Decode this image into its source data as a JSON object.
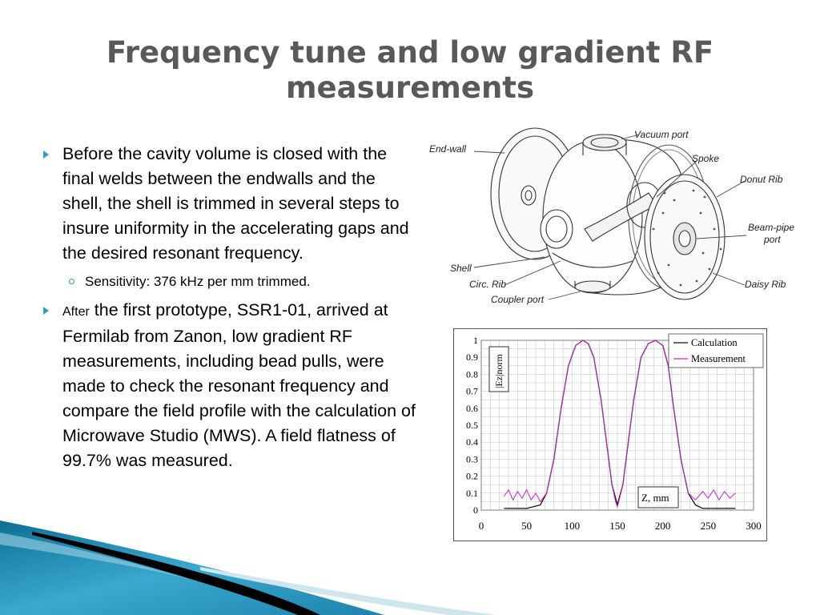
{
  "slide": {
    "title_line1": "Frequency tune and low gradient RF",
    "title_line2": "measurements",
    "bullet1_text": "Before the cavity volume is closed with the final welds between the endwalls and the shell, the shell is trimmed in several steps to insure uniformity in the accelerating gaps and the desired resonant frequency.",
    "sub_bullet": "Sensitivity: 376 kHz per mm trimmed.",
    "bullet2_lead": "After",
    "bullet2_text": " the first prototype, SSR1-01, arrived at Fermilab from Zanon, low gradient RF measurements, including bead pulls, were made to check the resonant frequency and compare the field profile with the calculation of Microwave Studio (MWS).  A field flatness of 99.7% was measured."
  },
  "diagram": {
    "labels": {
      "vacuum_port": "Vacuum port",
      "end_wall": "End-wall",
      "spoke": "Spoke",
      "donut_rib": "Donut Rib",
      "beam_pipe_port": "Beam-pipe",
      "beam_pipe_port_2": "port",
      "shell": "Shell",
      "circ_rib": "Circ. Rib",
      "daisy_rib": "Daisy Rib",
      "coupler_port": "Coupler port"
    }
  },
  "colors": {
    "title": "#595959",
    "bullet": "#2e9fc4",
    "calculation": "#111111",
    "measurement": "#cc22cc"
  },
  "chart_data": {
    "type": "line",
    "ylabel": "|Ez|norm",
    "xlabel": "Z, mm",
    "xlim": [
      0,
      300
    ],
    "ylim": [
      0,
      1
    ],
    "x_ticks": [
      0,
      50,
      100,
      150,
      200,
      250,
      300
    ],
    "y_ticks": [
      0,
      0.1,
      0.2,
      0.3,
      0.4,
      0.5,
      0.6,
      0.7,
      0.8,
      0.9,
      1
    ],
    "grid": true,
    "legend_position": "top-right",
    "series": [
      {
        "name": "Calculation",
        "color": "#111111",
        "x": [
          25,
          50,
          65,
          72,
          80,
          88,
          96,
          104,
          112,
          118,
          124,
          132,
          138,
          144,
          150,
          156,
          162,
          168,
          176,
          184,
          192,
          200,
          206,
          212,
          220,
          228,
          236,
          244,
          252,
          265,
          280
        ],
        "y": [
          0.01,
          0.01,
          0.03,
          0.1,
          0.3,
          0.6,
          0.85,
          0.97,
          1.0,
          0.98,
          0.9,
          0.65,
          0.4,
          0.15,
          0.03,
          0.15,
          0.4,
          0.65,
          0.9,
          0.98,
          1.0,
          0.97,
          0.85,
          0.6,
          0.3,
          0.1,
          0.03,
          0.01,
          0.01,
          0.01,
          0.01
        ]
      },
      {
        "name": "Measurement",
        "color": "#cc22cc",
        "x": [
          25,
          30,
          35,
          40,
          45,
          50,
          55,
          60,
          65,
          72,
          80,
          88,
          96,
          104,
          112,
          118,
          124,
          132,
          138,
          144,
          148,
          150,
          152,
          156,
          162,
          168,
          176,
          184,
          192,
          200,
          206,
          212,
          220,
          228,
          236,
          244,
          250,
          256,
          262,
          268,
          274,
          280
        ],
        "y": [
          0.08,
          0.12,
          0.06,
          0.11,
          0.07,
          0.12,
          0.06,
          0.1,
          0.05,
          0.1,
          0.3,
          0.6,
          0.85,
          0.97,
          1.0,
          0.98,
          0.9,
          0.65,
          0.4,
          0.15,
          0.05,
          0.02,
          0.06,
          0.15,
          0.4,
          0.65,
          0.9,
          0.98,
          1.0,
          0.97,
          0.85,
          0.6,
          0.3,
          0.1,
          0.06,
          0.11,
          0.07,
          0.12,
          0.06,
          0.11,
          0.07,
          0.1
        ]
      }
    ]
  }
}
